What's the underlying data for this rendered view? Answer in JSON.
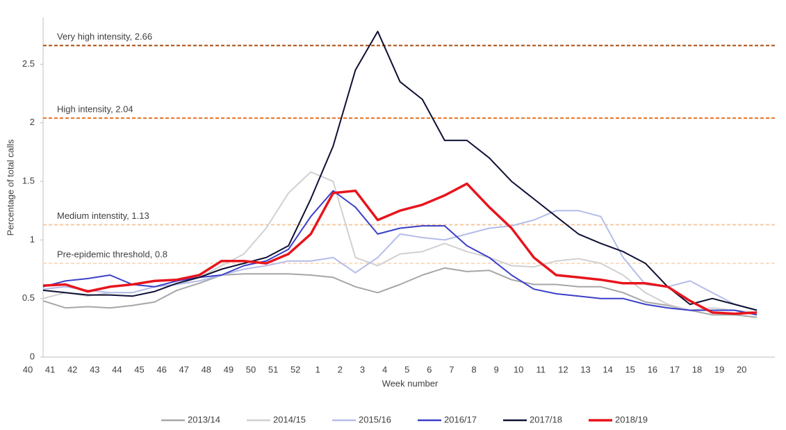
{
  "chart_data": {
    "type": "line",
    "y_label": "Percentage of total calls",
    "x_label": "Week number",
    "categories": [
      "40",
      "41",
      "42",
      "43",
      "44",
      "45",
      "46",
      "47",
      "48",
      "49",
      "50",
      "51",
      "52",
      "1",
      "2",
      "3",
      "4",
      "5",
      "6",
      "7",
      "8",
      "9",
      "10",
      "11",
      "12",
      "13",
      "14",
      "15",
      "16",
      "17",
      "18",
      "19",
      "20"
    ],
    "ylim": [
      0,
      2.9
    ],
    "yticks": [
      0,
      0.5,
      1,
      1.5,
      2,
      2.5
    ],
    "thresholds": [
      {
        "label": "Very high intensity, 2.66",
        "value": 2.66,
        "color": "#a8490f"
      },
      {
        "label": "High intensity, 2.04",
        "value": 2.04,
        "color": "#e8762a"
      },
      {
        "label": "Medium intenstity, 1.13",
        "value": 1.13,
        "color": "#f6c9a2"
      },
      {
        "label": "Pre-epidemic threshold, 0.8",
        "value": 0.8,
        "color": "#fadcc2"
      }
    ],
    "series": [
      {
        "name": "2013/14",
        "color": "#a6a6a6",
        "values": [
          0.48,
          0.42,
          0.43,
          0.42,
          0.44,
          0.47,
          0.57,
          0.63,
          0.7,
          0.71,
          0.71,
          0.71,
          0.7,
          0.68,
          0.6,
          0.55,
          0.62,
          0.7,
          0.76,
          0.73,
          0.74,
          0.66,
          0.62,
          0.62,
          0.6,
          0.6,
          0.55,
          0.47,
          0.44,
          0.4,
          0.36,
          0.36,
          0.34
        ]
      },
      {
        "name": "2014/15",
        "color": "#d0d0d0",
        "values": [
          0.5,
          0.55,
          0.52,
          0.55,
          0.55,
          0.6,
          0.62,
          0.68,
          0.78,
          0.88,
          1.1,
          1.4,
          1.58,
          1.5,
          0.85,
          0.78,
          0.88,
          0.9,
          0.97,
          0.9,
          0.85,
          0.78,
          0.77,
          0.82,
          0.84,
          0.8,
          0.7,
          0.55,
          0.45,
          0.4,
          0.42,
          0.4,
          0.38
        ]
      },
      {
        "name": "2015/16",
        "color": "#b4bce8",
        "values": [
          0.58,
          0.6,
          0.57,
          0.55,
          0.55,
          0.6,
          0.62,
          0.65,
          0.7,
          0.75,
          0.78,
          0.82,
          0.82,
          0.85,
          0.72,
          0.85,
          1.05,
          1.02,
          1.0,
          1.05,
          1.1,
          1.12,
          1.17,
          1.25,
          1.25,
          1.2,
          0.85,
          0.62,
          0.6,
          0.65,
          0.55,
          0.45,
          0.4
        ]
      },
      {
        "name": "2016/17",
        "color": "#3a3fc8",
        "values": [
          0.6,
          0.65,
          0.67,
          0.7,
          0.62,
          0.6,
          0.65,
          0.68,
          0.7,
          0.78,
          0.82,
          0.92,
          1.2,
          1.42,
          1.28,
          1.05,
          1.1,
          1.12,
          1.12,
          0.95,
          0.85,
          0.7,
          0.58,
          0.54,
          0.52,
          0.5,
          0.5,
          0.45,
          0.42,
          0.4,
          0.4,
          0.4,
          0.36
        ]
      },
      {
        "name": "2017/18",
        "color": "#0d1033",
        "values": [
          0.57,
          0.55,
          0.53,
          0.53,
          0.52,
          0.56,
          0.63,
          0.68,
          0.75,
          0.8,
          0.85,
          0.95,
          1.35,
          1.8,
          2.45,
          2.78,
          2.35,
          2.2,
          1.85,
          1.85,
          1.7,
          1.5,
          1.35,
          1.2,
          1.05,
          0.97,
          0.9,
          0.8,
          0.6,
          0.45,
          0.5,
          0.45,
          0.4
        ]
      },
      {
        "name": "2018/19",
        "color": "#e8141c",
        "values": [
          0.61,
          0.62,
          0.56,
          0.6,
          0.62,
          0.65,
          0.66,
          0.7,
          0.82,
          0.82,
          0.8,
          0.88,
          1.05,
          1.4,
          1.42,
          1.17,
          1.25,
          1.3,
          1.38,
          1.48,
          1.28,
          1.1,
          0.85,
          0.7,
          0.68,
          0.66,
          0.63,
          0.63,
          0.6,
          0.48,
          0.38,
          0.37,
          0.38
        ]
      }
    ]
  }
}
